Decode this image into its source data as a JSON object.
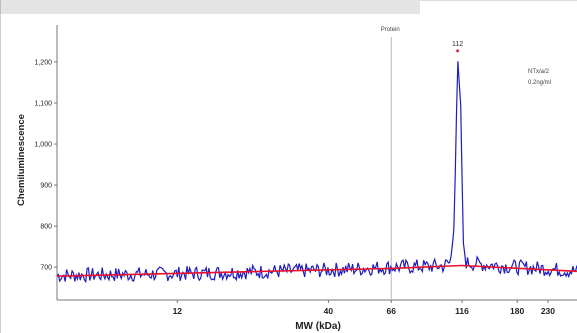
{
  "chart_data": {
    "type": "line",
    "xlabel": "MW (kDa)",
    "ylabel": "Chemiluminescence",
    "ylim": [
      620,
      1290
    ],
    "yticks": [
      700,
      800,
      900,
      1000,
      1100,
      1200
    ],
    "ytick_labels": [
      "700",
      "800",
      "900",
      "1,000",
      "1,100",
      "1,200"
    ],
    "xticks": [
      {
        "label": "12",
        "mw": 12
      },
      {
        "label": "40",
        "mw": 40
      },
      {
        "label": "66",
        "mw": 66
      },
      {
        "label": "116",
        "mw": 116
      },
      {
        "label": "180",
        "mw": 180
      },
      {
        "label": "230",
        "mw": 230
      }
    ],
    "marker": {
      "label": "Protein",
      "mw": 66
    },
    "peak": {
      "label": "112",
      "mw": 112,
      "value": 1210
    },
    "annotations": [
      "NTx/a/2",
      "0.2ng/ml"
    ],
    "series": [
      {
        "values": [
          {
            "mw": 4.6,
            "y": 680
          },
          {
            "mw": 12,
            "y": 684
          },
          {
            "mw": 40,
            "y": 693
          },
          {
            "mw": 66,
            "y": 700
          },
          {
            "mw": 100,
            "y": 703
          },
          {
            "mw": 106,
            "y": 712
          },
          {
            "mw": 109,
            "y": 805
          },
          {
            "mw": 112,
            "y": 1210
          },
          {
            "mw": 115,
            "y": 1080
          },
          {
            "mw": 117,
            "y": 760
          },
          {
            "mw": 120,
            "y": 710
          },
          {
            "mw": 180,
            "y": 700
          },
          {
            "mw": 230,
            "y": 696
          },
          {
            "mw": 290,
            "y": 690
          }
        ]
      }
    ],
    "baseline": [
      {
        "mw": 4.6,
        "y": 678
      },
      {
        "mw": 66,
        "y": 697
      },
      {
        "mw": 116,
        "y": 704
      },
      {
        "mw": 290,
        "y": 690
      }
    ],
    "colors": {
      "signal": "#1c1cbf",
      "baseline": "#e8102a",
      "marker": "#b8b8b8"
    }
  }
}
